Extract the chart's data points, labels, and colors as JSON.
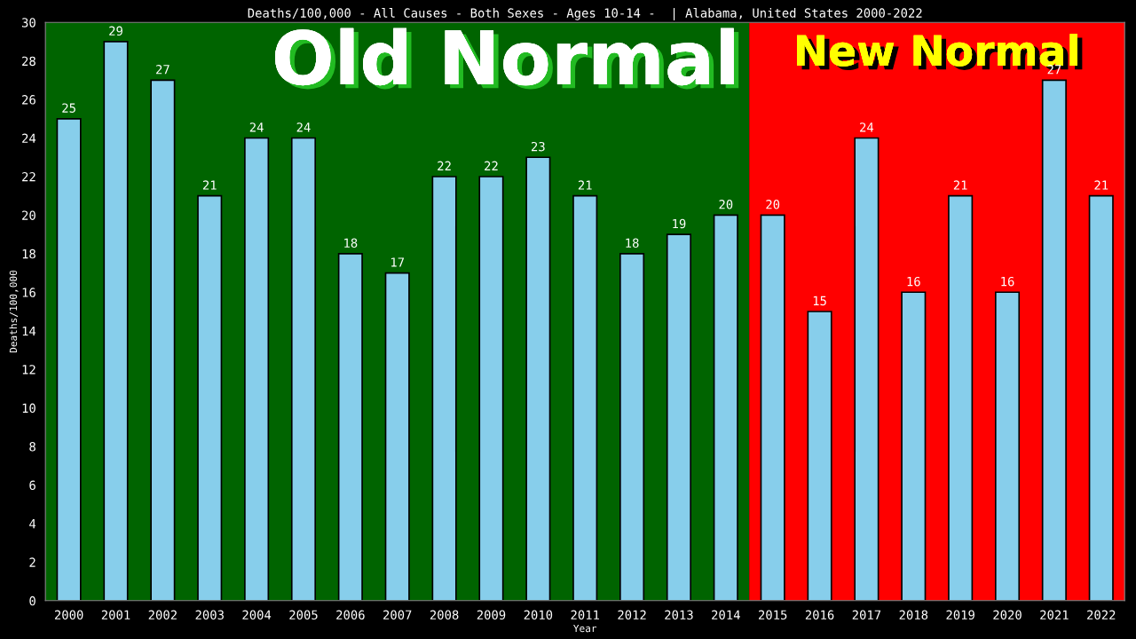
{
  "chart_data": {
    "type": "bar",
    "title": "Deaths/100,000 - All Causes - Both Sexes - Ages 10-14 -  | Alabama, United States 2000-2022",
    "xlabel": "Year",
    "ylabel": "Deaths/100,000",
    "categories": [
      "2000",
      "2001",
      "2002",
      "2003",
      "2004",
      "2005",
      "2006",
      "2007",
      "2008",
      "2009",
      "2010",
      "2011",
      "2012",
      "2013",
      "2014",
      "2015",
      "2016",
      "2017",
      "2018",
      "2019",
      "2020",
      "2021",
      "2022"
    ],
    "values": [
      25,
      29,
      27,
      21,
      24,
      24,
      18,
      17,
      22,
      22,
      23,
      21,
      18,
      19,
      20,
      20,
      15,
      24,
      16,
      21,
      16,
      27,
      21
    ],
    "color": "#87ceeb",
    "data_labels": true,
    "ylim": [
      0,
      30
    ],
    "yticks": [
      0,
      2,
      4,
      6,
      8,
      10,
      12,
      14,
      16,
      18,
      20,
      22,
      24,
      26,
      28,
      30
    ],
    "grid": false,
    "bands": [
      {
        "axis": "x",
        "from": "2000",
        "to": "2014",
        "label": "Old Normal",
        "color": "#006400"
      },
      {
        "axis": "x",
        "from": "2015",
        "to": "2022",
        "label": "New Normal",
        "color": "#ff0000"
      }
    ]
  }
}
